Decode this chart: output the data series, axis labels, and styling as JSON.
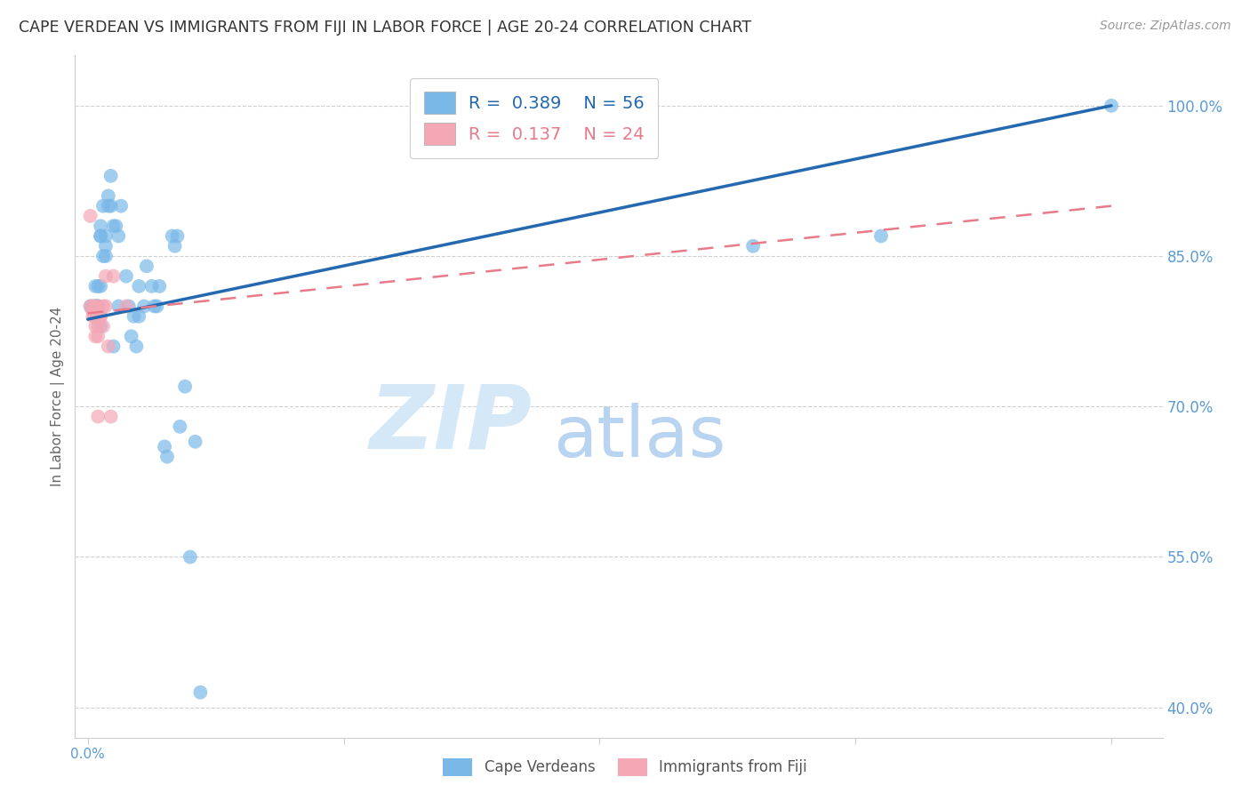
{
  "title": "CAPE VERDEAN VS IMMIGRANTS FROM FIJI IN LABOR FORCE | AGE 20-24 CORRELATION CHART",
  "source": "Source: ZipAtlas.com",
  "ylabel": "In Labor Force | Age 20-24",
  "x_ticks": [
    0.0,
    0.1,
    0.2,
    0.3,
    0.4
  ],
  "x_tick_labels": [
    "0.0%",
    "",
    "",
    "",
    ""
  ],
  "y_ticks": [
    0.4,
    0.55,
    0.7,
    0.85,
    1.0
  ],
  "y_tick_labels": [
    "40.0%",
    "55.0%",
    "70.0%",
    "85.0%",
    "100.0%"
  ],
  "xlim": [
    -0.005,
    0.42
  ],
  "ylim": [
    0.37,
    1.05
  ],
  "blue_R": 0.389,
  "blue_N": 56,
  "pink_R": 0.137,
  "pink_N": 24,
  "blue_label": "Cape Verdeans",
  "pink_label": "Immigrants from Fiji",
  "blue_color": "#7ab8e8",
  "pink_color": "#f4a7b5",
  "blue_line_color": "#2468b0",
  "pink_line_color": "#e87a8a",
  "axis_color": "#5b9bd5",
  "watermark_zip": "ZIP",
  "watermark_atlas": "atlas",
  "watermark_color_zip": "#d4e8f8",
  "watermark_color_atlas": "#b8d4f0",
  "blue_scatter_x": [
    0.001,
    0.002,
    0.002,
    0.003,
    0.003,
    0.003,
    0.004,
    0.004,
    0.004,
    0.004,
    0.005,
    0.005,
    0.005,
    0.005,
    0.005,
    0.006,
    0.006,
    0.007,
    0.007,
    0.007,
    0.008,
    0.008,
    0.009,
    0.009,
    0.01,
    0.01,
    0.011,
    0.012,
    0.012,
    0.013,
    0.015,
    0.016,
    0.017,
    0.018,
    0.019,
    0.02,
    0.02,
    0.022,
    0.023,
    0.025,
    0.026,
    0.027,
    0.028,
    0.03,
    0.031,
    0.033,
    0.034,
    0.035,
    0.036,
    0.038,
    0.04,
    0.042,
    0.044,
    0.26,
    0.31,
    0.4
  ],
  "blue_scatter_y": [
    0.8,
    0.795,
    0.8,
    0.8,
    0.82,
    0.8,
    0.795,
    0.8,
    0.82,
    0.8,
    0.87,
    0.88,
    0.82,
    0.87,
    0.78,
    0.9,
    0.85,
    0.87,
    0.85,
    0.86,
    0.9,
    0.91,
    0.93,
    0.9,
    0.88,
    0.76,
    0.88,
    0.8,
    0.87,
    0.9,
    0.83,
    0.8,
    0.77,
    0.79,
    0.76,
    0.79,
    0.82,
    0.8,
    0.84,
    0.82,
    0.8,
    0.8,
    0.82,
    0.66,
    0.65,
    0.87,
    0.86,
    0.87,
    0.68,
    0.72,
    0.55,
    0.665,
    0.415,
    0.86,
    0.87,
    1.0
  ],
  "pink_scatter_x": [
    0.001,
    0.001,
    0.002,
    0.002,
    0.002,
    0.003,
    0.003,
    0.003,
    0.003,
    0.003,
    0.004,
    0.004,
    0.004,
    0.004,
    0.005,
    0.005,
    0.006,
    0.006,
    0.007,
    0.007,
    0.008,
    0.009,
    0.01,
    0.015
  ],
  "pink_scatter_y": [
    0.89,
    0.8,
    0.8,
    0.795,
    0.79,
    0.8,
    0.795,
    0.79,
    0.78,
    0.77,
    0.8,
    0.78,
    0.77,
    0.69,
    0.79,
    0.79,
    0.78,
    0.8,
    0.8,
    0.83,
    0.76,
    0.69,
    0.83,
    0.8
  ],
  "blue_trendline_x0": 0.0,
  "blue_trendline_y0": 0.787,
  "blue_trendline_x1": 0.4,
  "blue_trendline_y1": 1.0,
  "pink_trendline_x0": 0.0,
  "pink_trendline_y0": 0.793,
  "pink_trendline_x1": 0.4,
  "pink_trendline_y1": 0.9
}
